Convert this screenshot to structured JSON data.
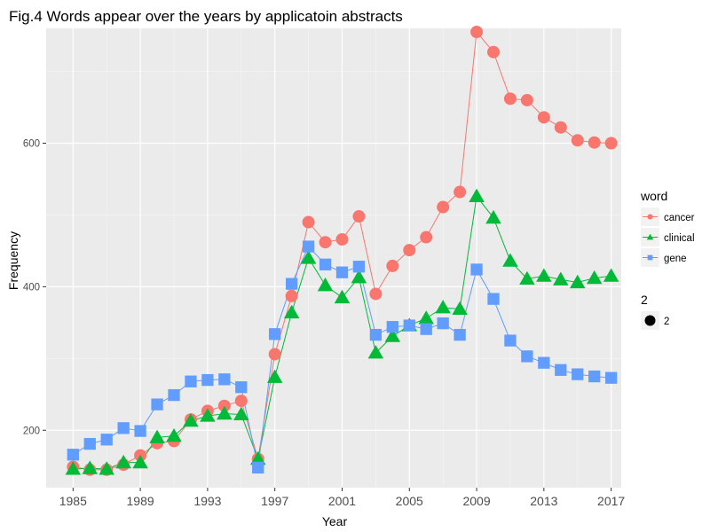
{
  "chart_data": {
    "type": "line",
    "title": "Fig.4 Words appear over the years by applicatoin abstracts",
    "xlabel": "Year",
    "ylabel": "Frequency",
    "xlim": [
      1985,
      2017
    ],
    "ylim": [
      120,
      760
    ],
    "xticks": [
      "1985",
      "1989",
      "1993",
      "1997",
      "2001",
      "2005",
      "2009",
      "2013",
      "2017"
    ],
    "yticks": [
      "200",
      "400",
      "600"
    ],
    "grid": true,
    "legend_position": "right",
    "legend": {
      "title": "word",
      "entries": [
        "cancer",
        "clinical",
        "gene"
      ]
    },
    "size_legend": {
      "title": "2",
      "label": "2"
    },
    "x": [
      1985,
      1986,
      1987,
      1988,
      1989,
      1990,
      1991,
      1992,
      1993,
      1994,
      1995,
      1996,
      1997,
      1998,
      1999,
      2000,
      2001,
      2002,
      2003,
      2004,
      2005,
      2006,
      2007,
      2008,
      2009,
      2010,
      2011,
      2012,
      2013,
      2014,
      2015,
      2016,
      2017
    ],
    "series": [
      {
        "name": "cancer",
        "color": "#F8766D",
        "marker": "circle",
        "values": [
          149,
          145,
          145,
          152,
          165,
          182,
          185,
          215,
          227,
          234,
          241,
          160,
          306,
          387,
          490,
          462,
          466,
          498,
          390,
          429,
          451,
          469,
          511,
          532,
          755,
          727,
          662,
          660,
          636,
          622,
          604,
          601,
          600
        ]
      },
      {
        "name": "clinical",
        "color": "#00BA38",
        "marker": "triangle",
        "values": [
          146,
          147,
          146,
          155,
          155,
          190,
          192,
          213,
          220,
          223,
          222,
          160,
          274,
          364,
          440,
          402,
          385,
          413,
          308,
          331,
          346,
          356,
          371,
          369,
          526,
          496,
          436,
          411,
          415,
          410,
          406,
          412,
          415
        ]
      },
      {
        "name": "gene",
        "color": "#619CFF",
        "marker": "square",
        "values": [
          166,
          181,
          187,
          203,
          199,
          236,
          249,
          268,
          270,
          271,
          260,
          148,
          334,
          404,
          456,
          431,
          420,
          428,
          333,
          344,
          346,
          341,
          349,
          333,
          424,
          383,
          325,
          303,
          294,
          284,
          278,
          275,
          273
        ]
      }
    ]
  }
}
